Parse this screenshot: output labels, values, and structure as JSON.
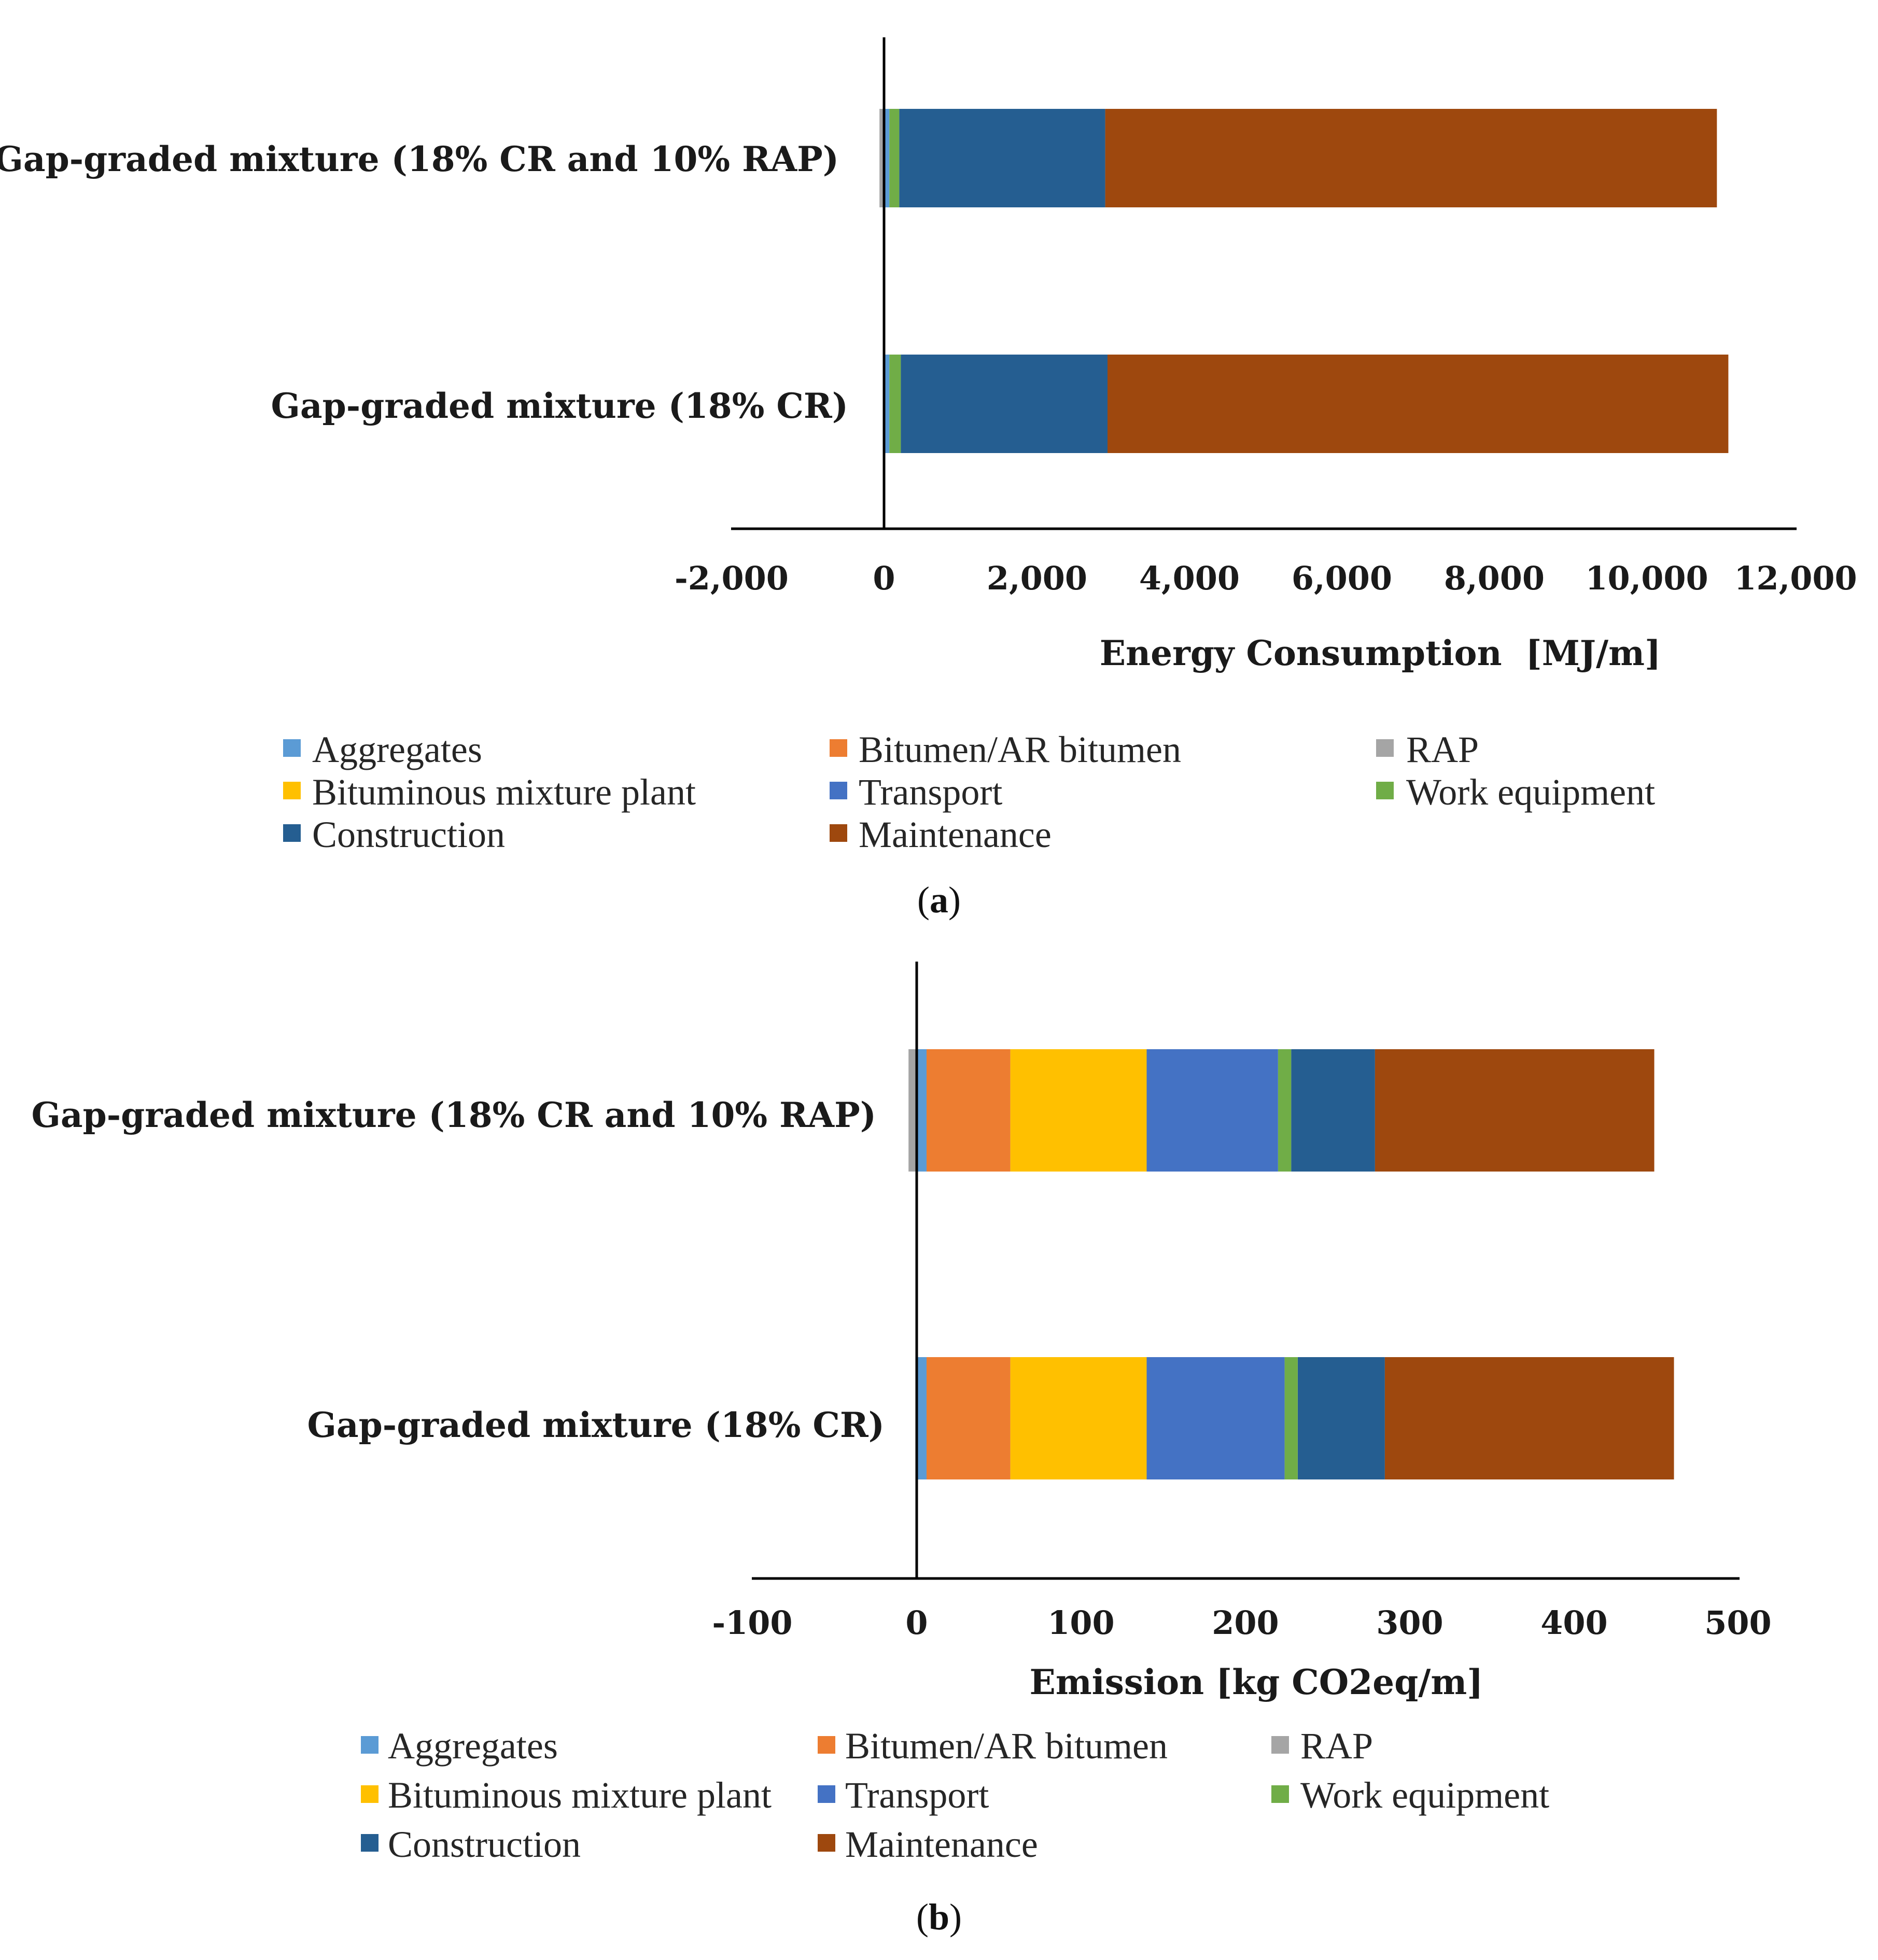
{
  "chart_data": [
    {
      "type": "bar",
      "orientation": "horizontal",
      "stacked": true,
      "caption_letter": "a",
      "title": "",
      "xlabel": "Energy Consumption  [MJ/m]",
      "ylabel": "",
      "xlim": [
        -2000,
        12000
      ],
      "ticks": [
        -2000,
        0,
        2000,
        4000,
        6000,
        8000,
        10000,
        12000
      ],
      "tick_labels": [
        "-2,000",
        "0",
        "2,000",
        "4,000",
        "6,000",
        "8,000",
        "10,000",
        "12,000"
      ],
      "grid": false,
      "legend_position": "bottom",
      "categories": [
        "Gap-graded mixture (18% CR  and 10% RAP)",
        "Gap-graded mixture (18% CR)"
      ],
      "series": [
        {
          "name": "Aggregates",
          "color": "#5b9bd5",
          "values": [
            70,
            70
          ]
        },
        {
          "name": "Bitumen/AR bitumen",
          "color": "#ed7d31",
          "values": [
            0,
            0
          ]
        },
        {
          "name": "RAP",
          "color": "#a5a5a5",
          "values": [
            -60,
            0
          ]
        },
        {
          "name": "Bituminous mixture plant",
          "color": "#ffc000",
          "values": [
            0,
            0
          ]
        },
        {
          "name": "Transport",
          "color": "#4472c4",
          "values": [
            0,
            0
          ]
        },
        {
          "name": "Work equipment",
          "color": "#70ad47",
          "values": [
            130,
            150
          ]
        },
        {
          "name": "Construction",
          "color": "#255e91",
          "values": [
            2700,
            2710
          ]
        },
        {
          "name": "Maintenance",
          "color": "#9e480e",
          "values": [
            8020,
            8140
          ]
        }
      ]
    },
    {
      "type": "bar",
      "orientation": "horizontal",
      "stacked": true,
      "caption_letter": "b",
      "title": "",
      "xlabel": "Emission [kg CO2eq/m]",
      "ylabel": "",
      "xlim": [
        -100,
        500
      ],
      "ticks": [
        -100,
        0,
        100,
        200,
        300,
        400,
        500
      ],
      "tick_labels": [
        "-100",
        "0",
        "100",
        "200",
        "300",
        "400",
        "500"
      ],
      "grid": false,
      "legend_position": "bottom",
      "categories": [
        "Gap-graded mixture (18% CR  and 10% RAP)",
        "Gap-graded mixture (18% CR)"
      ],
      "series": [
        {
          "name": "Aggregates",
          "color": "#5b9bd5",
          "values": [
            6,
            6
          ]
        },
        {
          "name": "Bitumen/AR bitumen",
          "color": "#ed7d31",
          "values": [
            51,
            51
          ]
        },
        {
          "name": "RAP",
          "color": "#a5a5a5",
          "values": [
            -5,
            0
          ]
        },
        {
          "name": "Bituminous mixture plant",
          "color": "#ffc000",
          "values": [
            83,
            83
          ]
        },
        {
          "name": "Transport",
          "color": "#4472c4",
          "values": [
            80,
            84
          ]
        },
        {
          "name": "Work equipment",
          "color": "#70ad47",
          "values": [
            8,
            8
          ]
        },
        {
          "name": "Construction",
          "color": "#255e91",
          "values": [
            51,
            53
          ]
        },
        {
          "name": "Maintenance",
          "color": "#9e480e",
          "values": [
            170,
            176
          ]
        }
      ]
    }
  ]
}
